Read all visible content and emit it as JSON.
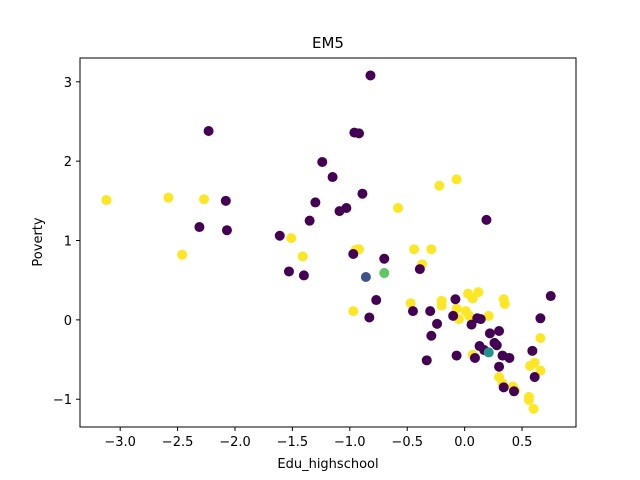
{
  "chart_data": {
    "type": "scatter",
    "title": "EM5",
    "xlabel": "Edu_highschool",
    "ylabel": "Poverty",
    "xlim": [
      -3.35,
      0.97
    ],
    "ylim": [
      -1.35,
      3.3
    ],
    "xticks": [
      -3.0,
      -2.5,
      -2.0,
      -1.5,
      -1.0,
      -0.5,
      0.0,
      0.5
    ],
    "xtick_labels": [
      "−3.0",
      "−2.5",
      "−2.0",
      "−1.5",
      "−1.0",
      "−0.5",
      "0.0",
      "0.5"
    ],
    "yticks": [
      -1,
      0,
      1,
      2,
      3
    ],
    "ytick_labels": [
      "−1",
      "0",
      "1",
      "2",
      "3"
    ],
    "grid": false,
    "colors": {
      "cluster_purple": "#440154",
      "cluster_yellow": "#fde725",
      "cluster_blue": "#3b528b",
      "cluster_teal": "#21918c",
      "cluster_green": "#5ec962"
    },
    "points": [
      {
        "x": -3.12,
        "y": 1.51,
        "c": "cluster_yellow"
      },
      {
        "x": -2.58,
        "y": 1.54,
        "c": "cluster_yellow"
      },
      {
        "x": -2.27,
        "y": 1.52,
        "c": "cluster_yellow"
      },
      {
        "x": -2.46,
        "y": 0.82,
        "c": "cluster_yellow"
      },
      {
        "x": -1.51,
        "y": 1.03,
        "c": "cluster_yellow"
      },
      {
        "x": -1.41,
        "y": 0.8,
        "c": "cluster_yellow"
      },
      {
        "x": -0.95,
        "y": 0.88,
        "c": "cluster_yellow"
      },
      {
        "x": -0.92,
        "y": 0.89,
        "c": "cluster_yellow"
      },
      {
        "x": -0.97,
        "y": 0.11,
        "c": "cluster_yellow"
      },
      {
        "x": -0.58,
        "y": 1.41,
        "c": "cluster_yellow"
      },
      {
        "x": -0.22,
        "y": 1.69,
        "c": "cluster_yellow"
      },
      {
        "x": -0.07,
        "y": 1.77,
        "c": "cluster_yellow"
      },
      {
        "x": -0.44,
        "y": 0.89,
        "c": "cluster_yellow"
      },
      {
        "x": -0.29,
        "y": 0.89,
        "c": "cluster_yellow"
      },
      {
        "x": -0.37,
        "y": 0.7,
        "c": "cluster_yellow"
      },
      {
        "x": -0.47,
        "y": 0.21,
        "c": "cluster_yellow"
      },
      {
        "x": -0.2,
        "y": 0.24,
        "c": "cluster_yellow"
      },
      {
        "x": -0.2,
        "y": 0.18,
        "c": "cluster_yellow"
      },
      {
        "x": -0.07,
        "y": 0.14,
        "c": "cluster_yellow"
      },
      {
        "x": -0.05,
        "y": 0.01,
        "c": "cluster_yellow"
      },
      {
        "x": 0.01,
        "y": 0.11,
        "c": "cluster_yellow"
      },
      {
        "x": 0.03,
        "y": 0.33,
        "c": "cluster_yellow"
      },
      {
        "x": 0.04,
        "y": 0.05,
        "c": "cluster_yellow"
      },
      {
        "x": 0.07,
        "y": 0.27,
        "c": "cluster_yellow"
      },
      {
        "x": 0.12,
        "y": 0.35,
        "c": "cluster_yellow"
      },
      {
        "x": 0.21,
        "y": 0.05,
        "c": "cluster_yellow"
      },
      {
        "x": 0.34,
        "y": 0.26,
        "c": "cluster_yellow"
      },
      {
        "x": 0.35,
        "y": 0.2,
        "c": "cluster_yellow"
      },
      {
        "x": 0.07,
        "y": -0.44,
        "c": "cluster_yellow"
      },
      {
        "x": 0.3,
        "y": -0.72,
        "c": "cluster_yellow"
      },
      {
        "x": 0.33,
        "y": -0.8,
        "c": "cluster_yellow"
      },
      {
        "x": 0.42,
        "y": -0.84,
        "c": "cluster_yellow"
      },
      {
        "x": 0.44,
        "y": -0.89,
        "c": "cluster_yellow"
      },
      {
        "x": 0.56,
        "y": -0.97,
        "c": "cluster_yellow"
      },
      {
        "x": 0.56,
        "y": -1.01,
        "c": "cluster_yellow"
      },
      {
        "x": 0.6,
        "y": -1.12,
        "c": "cluster_yellow"
      },
      {
        "x": 0.57,
        "y": -0.58,
        "c": "cluster_yellow"
      },
      {
        "x": 0.61,
        "y": -0.54,
        "c": "cluster_yellow"
      },
      {
        "x": 0.66,
        "y": -0.64,
        "c": "cluster_yellow"
      },
      {
        "x": 0.66,
        "y": -0.23,
        "c": "cluster_yellow"
      },
      {
        "x": -2.23,
        "y": 2.38,
        "c": "cluster_purple"
      },
      {
        "x": -2.08,
        "y": 1.5,
        "c": "cluster_purple"
      },
      {
        "x": -2.07,
        "y": 1.13,
        "c": "cluster_purple"
      },
      {
        "x": -2.31,
        "y": 1.17,
        "c": "cluster_purple"
      },
      {
        "x": -1.61,
        "y": 1.06,
        "c": "cluster_purple"
      },
      {
        "x": -1.53,
        "y": 0.61,
        "c": "cluster_purple"
      },
      {
        "x": -1.4,
        "y": 0.56,
        "c": "cluster_purple"
      },
      {
        "x": -1.35,
        "y": 1.25,
        "c": "cluster_purple"
      },
      {
        "x": -1.3,
        "y": 1.48,
        "c": "cluster_purple"
      },
      {
        "x": -1.24,
        "y": 1.99,
        "c": "cluster_purple"
      },
      {
        "x": -1.15,
        "y": 1.8,
        "c": "cluster_purple"
      },
      {
        "x": -1.09,
        "y": 1.37,
        "c": "cluster_purple"
      },
      {
        "x": -1.03,
        "y": 1.41,
        "c": "cluster_purple"
      },
      {
        "x": -0.96,
        "y": 2.36,
        "c": "cluster_purple"
      },
      {
        "x": -0.92,
        "y": 2.35,
        "c": "cluster_purple"
      },
      {
        "x": -0.89,
        "y": 1.59,
        "c": "cluster_purple"
      },
      {
        "x": -0.82,
        "y": 3.08,
        "c": "cluster_purple"
      },
      {
        "x": -0.97,
        "y": 0.83,
        "c": "cluster_purple"
      },
      {
        "x": -0.7,
        "y": 0.77,
        "c": "cluster_purple"
      },
      {
        "x": -0.39,
        "y": 0.64,
        "c": "cluster_purple"
      },
      {
        "x": -0.77,
        "y": 0.25,
        "c": "cluster_purple"
      },
      {
        "x": -0.83,
        "y": 0.03,
        "c": "cluster_purple"
      },
      {
        "x": -0.45,
        "y": 0.11,
        "c": "cluster_purple"
      },
      {
        "x": -0.3,
        "y": 0.11,
        "c": "cluster_purple"
      },
      {
        "x": -0.24,
        "y": -0.05,
        "c": "cluster_purple"
      },
      {
        "x": -0.29,
        "y": -0.2,
        "c": "cluster_purple"
      },
      {
        "x": -0.33,
        "y": -0.51,
        "c": "cluster_purple"
      },
      {
        "x": -0.1,
        "y": 0.05,
        "c": "cluster_purple"
      },
      {
        "x": -0.08,
        "y": 0.26,
        "c": "cluster_purple"
      },
      {
        "x": -0.07,
        "y": -0.45,
        "c": "cluster_purple"
      },
      {
        "x": 0.06,
        "y": -0.06,
        "c": "cluster_purple"
      },
      {
        "x": 0.09,
        "y": -0.48,
        "c": "cluster_purple"
      },
      {
        "x": 0.11,
        "y": 0.02,
        "c": "cluster_purple"
      },
      {
        "x": 0.14,
        "y": 0.01,
        "c": "cluster_purple"
      },
      {
        "x": 0.13,
        "y": -0.33,
        "c": "cluster_purple"
      },
      {
        "x": 0.17,
        "y": -0.38,
        "c": "cluster_purple"
      },
      {
        "x": 0.19,
        "y": 1.26,
        "c": "cluster_purple"
      },
      {
        "x": 0.22,
        "y": -0.17,
        "c": "cluster_purple"
      },
      {
        "x": 0.26,
        "y": -0.29,
        "c": "cluster_purple"
      },
      {
        "x": 0.28,
        "y": -0.32,
        "c": "cluster_purple"
      },
      {
        "x": 0.3,
        "y": -0.14,
        "c": "cluster_purple"
      },
      {
        "x": 0.3,
        "y": -0.59,
        "c": "cluster_purple"
      },
      {
        "x": 0.33,
        "y": -0.45,
        "c": "cluster_purple"
      },
      {
        "x": 0.34,
        "y": -0.85,
        "c": "cluster_purple"
      },
      {
        "x": 0.39,
        "y": -0.48,
        "c": "cluster_purple"
      },
      {
        "x": 0.43,
        "y": -0.9,
        "c": "cluster_purple"
      },
      {
        "x": 0.59,
        "y": -0.39,
        "c": "cluster_purple"
      },
      {
        "x": 0.61,
        "y": -0.72,
        "c": "cluster_purple"
      },
      {
        "x": 0.66,
        "y": 0.02,
        "c": "cluster_purple"
      },
      {
        "x": 0.75,
        "y": 0.3,
        "c": "cluster_purple"
      },
      {
        "x": -0.86,
        "y": 0.54,
        "c": "cluster_blue"
      },
      {
        "x": -0.7,
        "y": 0.59,
        "c": "cluster_green"
      },
      {
        "x": 0.21,
        "y": -0.41,
        "c": "cluster_teal"
      }
    ]
  }
}
